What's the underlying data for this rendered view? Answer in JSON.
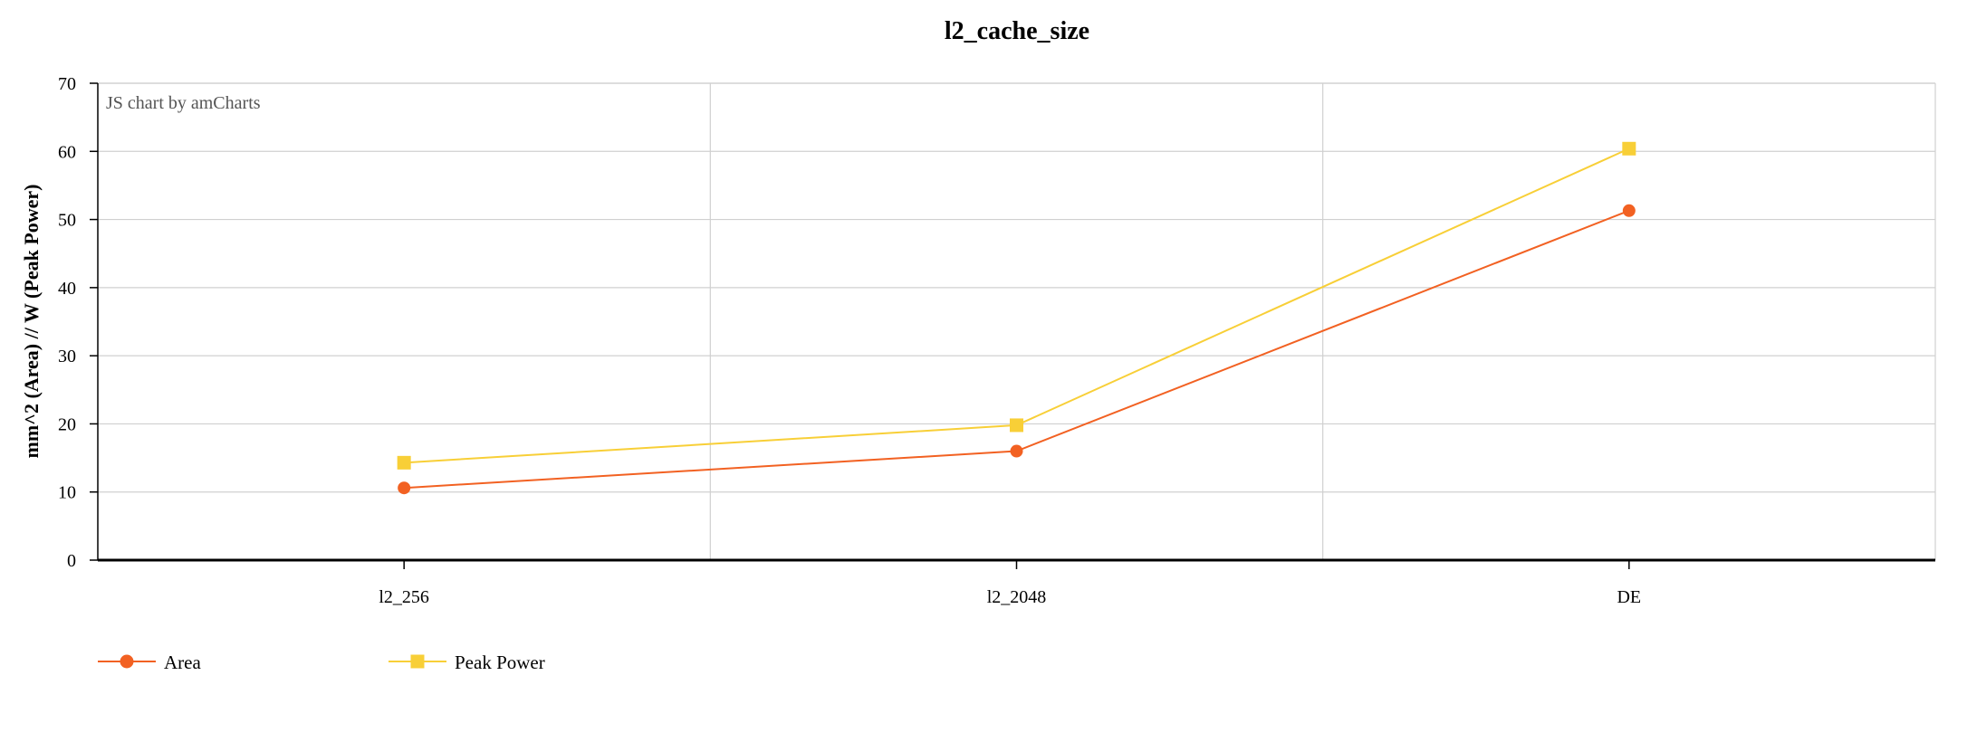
{
  "chart_data": {
    "type": "line",
    "title": "l2_cache_size",
    "xlabel": "",
    "ylabel": "mm^2 (Area) // W (Peak Power)",
    "categories": [
      "l2_256",
      "l2_2048",
      "DE"
    ],
    "ylim": [
      0,
      70
    ],
    "yticks": [
      0,
      10,
      20,
      30,
      40,
      50,
      60,
      70
    ],
    "grid": true,
    "legend_position": "bottom-left",
    "series": [
      {
        "name": "Area",
        "marker": "circle",
        "color": "#f26122",
        "values": [
          10.6,
          16.0,
          51.3
        ]
      },
      {
        "name": "Peak Power",
        "marker": "square",
        "color": "#f8cf37",
        "values": [
          14.3,
          19.8,
          60.4
        ]
      }
    ],
    "credit": "JS chart by amCharts"
  }
}
